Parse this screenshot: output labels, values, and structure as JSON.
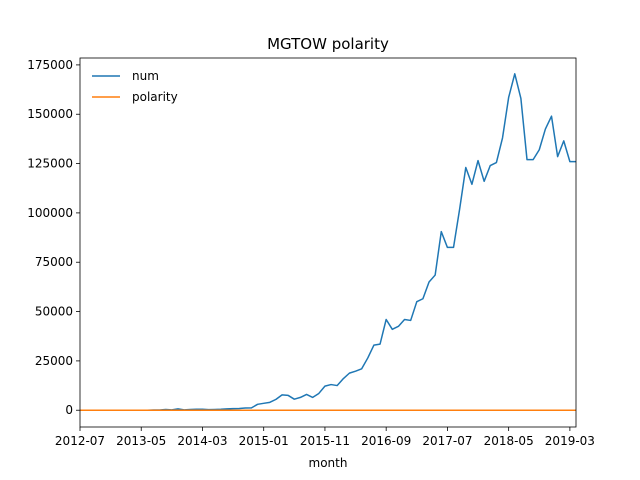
{
  "chart_data": {
    "type": "line",
    "title": "MGTOW polarity",
    "xlabel": "month",
    "ylabel": "",
    "grid": false,
    "legend_placement": "top-left",
    "xlim": [
      "2012-07",
      "2019-04"
    ],
    "ylim": [
      -8500,
      178500
    ],
    "x_tick_labels": [
      "2012-07",
      "2013-05",
      "2014-03",
      "2015-01",
      "2015-11",
      "2016-09",
      "2017-07",
      "2018-05",
      "2019-03"
    ],
    "y_tick_values": [
      0,
      25000,
      50000,
      75000,
      100000,
      125000,
      150000,
      175000
    ],
    "x": [
      "2012-07",
      "2012-08",
      "2012-09",
      "2012-10",
      "2012-11",
      "2012-12",
      "2013-01",
      "2013-02",
      "2013-03",
      "2013-04",
      "2013-05",
      "2013-06",
      "2013-07",
      "2013-08",
      "2013-09",
      "2013-10",
      "2013-11",
      "2013-12",
      "2014-01",
      "2014-02",
      "2014-03",
      "2014-04",
      "2014-05",
      "2014-06",
      "2014-07",
      "2014-08",
      "2014-09",
      "2014-10",
      "2014-11",
      "2014-12",
      "2015-01",
      "2015-02",
      "2015-03",
      "2015-04",
      "2015-05",
      "2015-06",
      "2015-07",
      "2015-08",
      "2015-09",
      "2015-10",
      "2015-11",
      "2015-12",
      "2016-01",
      "2016-02",
      "2016-03",
      "2016-04",
      "2016-05",
      "2016-06",
      "2016-07",
      "2016-08",
      "2016-09",
      "2016-10",
      "2016-11",
      "2016-12",
      "2017-01",
      "2017-02",
      "2017-03",
      "2017-04",
      "2017-05",
      "2017-06",
      "2017-07",
      "2017-08",
      "2017-09",
      "2017-10",
      "2017-11",
      "2017-12",
      "2018-01",
      "2018-02",
      "2018-03",
      "2018-04",
      "2018-05",
      "2018-06",
      "2018-07",
      "2018-08",
      "2018-09",
      "2018-10",
      "2018-11",
      "2018-12",
      "2019-01",
      "2019-02",
      "2019-03",
      "2019-04"
    ],
    "series": [
      {
        "name": "num",
        "color": "#1f77b4",
        "values": [
          0,
          0,
          0,
          0,
          0,
          0,
          0,
          0,
          0,
          0,
          0,
          0,
          100,
          100,
          400,
          200,
          700,
          200,
          400,
          500,
          500,
          300,
          400,
          500,
          700,
          800,
          900,
          1100,
          1200,
          3000,
          3500,
          4000,
          5500,
          7800,
          7500,
          5600,
          6500,
          8000,
          6500,
          8500,
          12200,
          13000,
          12500,
          16000,
          18800,
          19800,
          21000,
          26500,
          33000,
          33500,
          46000,
          41000,
          42500,
          46000,
          45500,
          55000,
          56500,
          65000,
          68500,
          90500,
          82500,
          82500,
          102000,
          123000,
          114500,
          126500,
          116000,
          124000,
          125500,
          138000,
          158500,
          170500,
          158000,
          127000,
          127000,
          132000,
          142500,
          149000,
          128500,
          136500,
          126000,
          126000
        ]
      },
      {
        "name": "polarity",
        "color": "#ff7f0e",
        "values": [
          0,
          0,
          0,
          0,
          0,
          0,
          0,
          0,
          0,
          0,
          0,
          0,
          0,
          0,
          0,
          0,
          0,
          0,
          0,
          0,
          0,
          0,
          0,
          0,
          0,
          0,
          0,
          0,
          0,
          0,
          0,
          0,
          0,
          0,
          0,
          0,
          0,
          0,
          0,
          0,
          0,
          0,
          0,
          0,
          0,
          0,
          0,
          0,
          0,
          0,
          0,
          0,
          0,
          0,
          0,
          0,
          0,
          0,
          0,
          0,
          0,
          0,
          0,
          0,
          0,
          0,
          0,
          0,
          0,
          0,
          0,
          0,
          0,
          0,
          0,
          0,
          0,
          0,
          0,
          0,
          0,
          0
        ]
      }
    ]
  }
}
